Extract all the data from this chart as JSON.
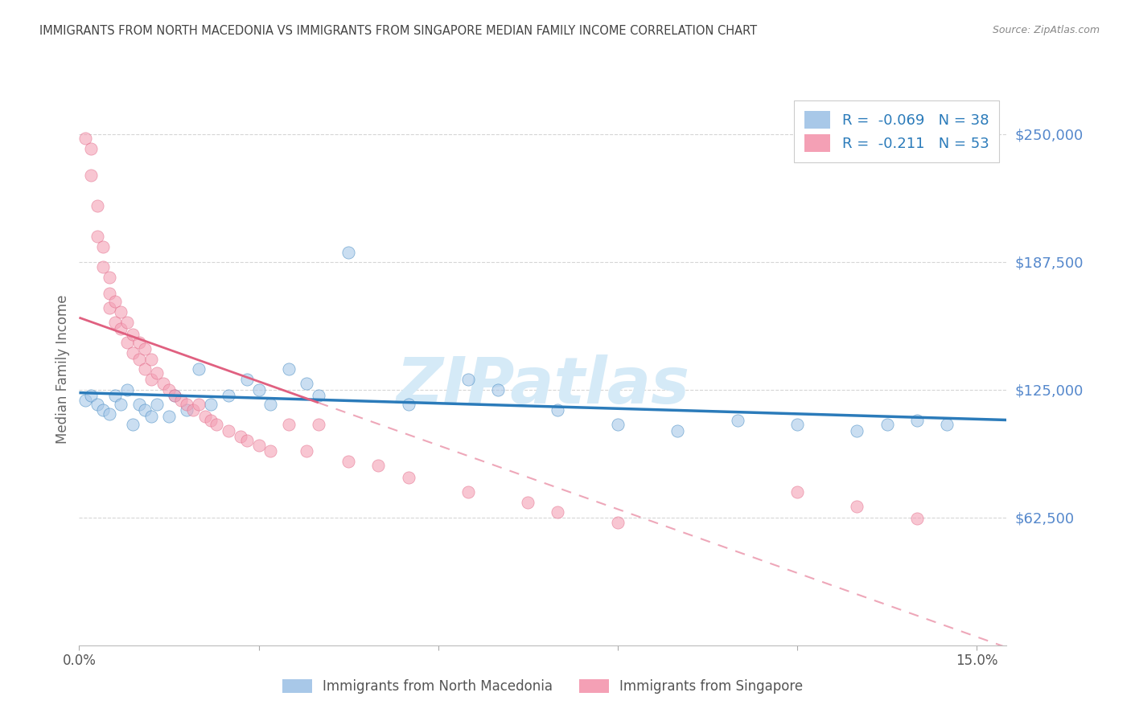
{
  "title": "IMMIGRANTS FROM NORTH MACEDONIA VS IMMIGRANTS FROM SINGAPORE MEDIAN FAMILY INCOME CORRELATION CHART",
  "source": "Source: ZipAtlas.com",
  "ylabel": "Median Family Income",
  "xlim": [
    0.0,
    0.155
  ],
  "ylim": [
    0,
    270000
  ],
  "yticks": [
    62500,
    125000,
    187500,
    250000
  ],
  "ytick_labels": [
    "$62,500",
    "$125,000",
    "$187,500",
    "$250,000"
  ],
  "xticks": [
    0.0,
    0.03,
    0.06,
    0.09,
    0.12,
    0.15
  ],
  "xtick_labels": [
    "0.0%",
    "",
    "",
    "",
    "",
    "15.0%"
  ],
  "legend_labels": [
    "Immigrants from North Macedonia",
    "Immigrants from Singapore"
  ],
  "r_north_macedonia": -0.069,
  "n_north_macedonia": 38,
  "r_singapore": -0.211,
  "n_singapore": 53,
  "color_blue": "#a8c8e8",
  "color_pink": "#f4a0b5",
  "color_blue_line": "#2b7bba",
  "color_pink_line": "#e06080",
  "watermark": "ZIPatlas",
  "watermark_color": "#d5eaf7",
  "bg_color": "#ffffff",
  "grid_color": "#cccccc",
  "axis_label_color": "#5588cc",
  "title_color": "#444444",
  "blue_x": [
    0.001,
    0.002,
    0.003,
    0.004,
    0.005,
    0.006,
    0.007,
    0.008,
    0.009,
    0.01,
    0.011,
    0.012,
    0.013,
    0.015,
    0.016,
    0.018,
    0.02,
    0.022,
    0.025,
    0.028,
    0.03,
    0.032,
    0.035,
    0.038,
    0.04,
    0.045,
    0.055,
    0.065,
    0.07,
    0.08,
    0.09,
    0.1,
    0.11,
    0.12,
    0.13,
    0.135,
    0.14,
    0.145
  ],
  "blue_y": [
    120000,
    122000,
    118000,
    115000,
    113000,
    122000,
    118000,
    125000,
    108000,
    118000,
    115000,
    112000,
    118000,
    112000,
    122000,
    115000,
    135000,
    118000,
    122000,
    130000,
    125000,
    118000,
    135000,
    128000,
    122000,
    192000,
    118000,
    130000,
    125000,
    115000,
    108000,
    105000,
    110000,
    108000,
    105000,
    108000,
    110000,
    108000
  ],
  "pink_x": [
    0.001,
    0.002,
    0.002,
    0.003,
    0.003,
    0.004,
    0.004,
    0.005,
    0.005,
    0.005,
    0.006,
    0.006,
    0.007,
    0.007,
    0.008,
    0.008,
    0.009,
    0.009,
    0.01,
    0.01,
    0.011,
    0.011,
    0.012,
    0.012,
    0.013,
    0.014,
    0.015,
    0.016,
    0.017,
    0.018,
    0.019,
    0.02,
    0.021,
    0.022,
    0.023,
    0.025,
    0.027,
    0.028,
    0.03,
    0.032,
    0.035,
    0.038,
    0.04,
    0.045,
    0.05,
    0.055,
    0.065,
    0.075,
    0.08,
    0.09,
    0.12,
    0.13,
    0.14
  ],
  "pink_y": [
    248000,
    243000,
    230000,
    215000,
    200000,
    195000,
    185000,
    180000,
    172000,
    165000,
    168000,
    158000,
    163000,
    155000,
    158000,
    148000,
    152000,
    143000,
    148000,
    140000,
    145000,
    135000,
    140000,
    130000,
    133000,
    128000,
    125000,
    122000,
    120000,
    118000,
    115000,
    118000,
    112000,
    110000,
    108000,
    105000,
    102000,
    100000,
    98000,
    95000,
    108000,
    95000,
    108000,
    90000,
    88000,
    82000,
    75000,
    70000,
    65000,
    60000,
    75000,
    68000,
    62000
  ]
}
